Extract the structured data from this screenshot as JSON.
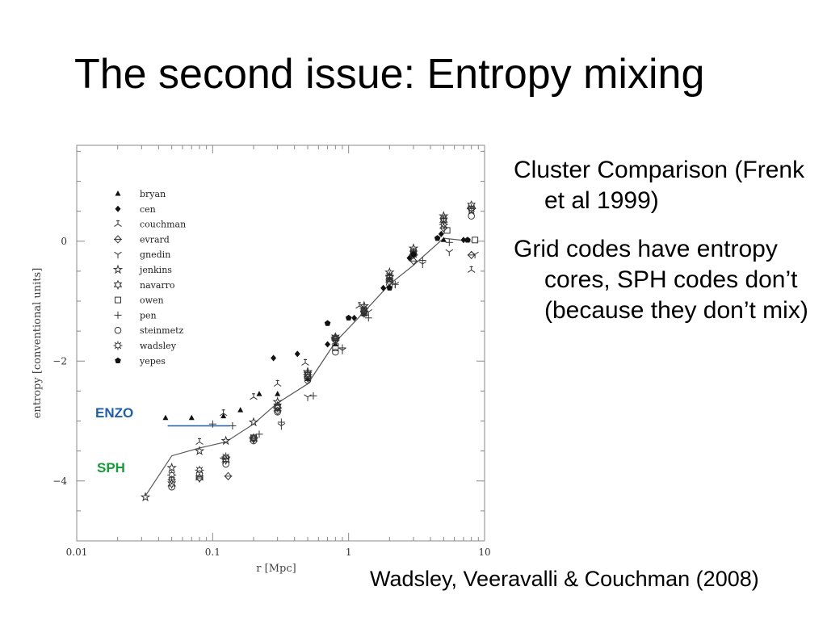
{
  "slide": {
    "title": "The second issue: Entropy mixing",
    "bullets": [
      "Cluster Comparison (Frenk et al 1999)",
      "Grid codes have entropy cores, SPH codes don’t (because they don’t mix)"
    ],
    "citation": "Wadsley, Veeravalli & Couchman (2008)"
  },
  "callouts": {
    "enzo": {
      "text": "ENZO",
      "color": "#1f5fa8"
    },
    "sph": {
      "text": "SPH",
      "color": "#1a9a3a"
    }
  },
  "chart_data": {
    "type": "scatter",
    "xlabel": "r [Mpc]",
    "ylabel": "entropy [conventional units]",
    "xscale": "log",
    "xlim": [
      0.01,
      10
    ],
    "ylim": [
      -5,
      1.6
    ],
    "xticks": [
      "0.01",
      "0.1",
      "1",
      "10"
    ],
    "yticks": [
      "0",
      "−2",
      "−4"
    ],
    "ytick_values": [
      0,
      -2,
      -4
    ],
    "xtick_values": [
      0.01,
      0.1,
      1,
      10
    ],
    "legend": {
      "placement": "top-left"
    },
    "series": [
      {
        "name": "bryan",
        "marker": "triangle",
        "points": [
          [
            0.045,
            -2.95
          ],
          [
            0.07,
            -2.95
          ],
          [
            0.12,
            -2.92
          ],
          [
            0.16,
            -2.82
          ],
          [
            0.22,
            -2.55
          ],
          [
            0.3,
            -2.55
          ],
          [
            0.5,
            -2.3
          ],
          [
            0.8,
            -1.72
          ],
          [
            1.3,
            -1.22
          ],
          [
            2.0,
            -0.62
          ],
          [
            3.0,
            -0.22
          ],
          [
            5.0,
            0.02
          ]
        ]
      },
      {
        "name": "cen",
        "marker": "diamond",
        "points": [
          [
            0.28,
            -1.95
          ],
          [
            0.42,
            -1.88
          ],
          [
            0.7,
            -1.72
          ],
          [
            1.1,
            -1.28
          ],
          [
            1.8,
            -0.78
          ],
          [
            2.8,
            -0.28
          ],
          [
            4.8,
            0.12
          ],
          [
            7.0,
            0.02
          ]
        ]
      },
      {
        "name": "couchman",
        "marker": "tri3",
        "points": [
          [
            0.08,
            -3.35
          ],
          [
            0.12,
            -2.87
          ],
          [
            0.2,
            -2.6
          ],
          [
            0.3,
            -2.38
          ],
          [
            0.48,
            -2.03
          ],
          [
            0.8,
            -1.68
          ],
          [
            1.2,
            -1.08
          ],
          [
            2.0,
            -0.62
          ],
          [
            3.0,
            -0.18
          ],
          [
            5.0,
            0.32
          ],
          [
            8.0,
            -0.48
          ]
        ]
      },
      {
        "name": "evrard",
        "marker": "diamond-open",
        "points": [
          [
            0.05,
            -3.98
          ],
          [
            0.08,
            -3.95
          ],
          [
            0.13,
            -3.92
          ],
          [
            0.2,
            -3.3
          ],
          [
            0.3,
            -2.83
          ],
          [
            0.5,
            -2.28
          ],
          [
            0.8,
            -1.65
          ],
          [
            1.3,
            -1.18
          ],
          [
            2.0,
            -0.68
          ],
          [
            3.0,
            -0.33
          ],
          [
            5.0,
            0.22
          ],
          [
            8.0,
            -0.23
          ]
        ]
      },
      {
        "name": "gnedin",
        "marker": "tri-down",
        "points": [
          [
            0.12,
            -3.65
          ],
          [
            0.32,
            -3.08
          ],
          [
            0.5,
            -2.6
          ],
          [
            0.9,
            -1.82
          ],
          [
            1.4,
            -1.18
          ],
          [
            2.2,
            -0.72
          ],
          [
            3.5,
            -0.38
          ],
          [
            5.5,
            -0.18
          ],
          [
            8.5,
            -0.22
          ]
        ]
      },
      {
        "name": "jenkins",
        "marker": "star-open",
        "points": [
          [
            0.032,
            -4.27
          ],
          [
            0.05,
            -3.78
          ],
          [
            0.08,
            -3.5
          ],
          [
            0.125,
            -3.33
          ],
          [
            0.2,
            -3.02
          ],
          [
            0.3,
            -2.68
          ],
          [
            0.5,
            -2.18
          ],
          [
            0.8,
            -1.62
          ],
          [
            1.3,
            -1.08
          ],
          [
            2.0,
            -0.52
          ],
          [
            3.0,
            -0.12
          ],
          [
            5.0,
            0.42
          ],
          [
            8.0,
            0.52
          ]
        ]
      },
      {
        "name": "navarro",
        "marker": "star6-open",
        "points": [
          [
            0.05,
            -4.05
          ],
          [
            0.08,
            -3.95
          ],
          [
            0.125,
            -3.65
          ],
          [
            0.2,
            -3.3
          ],
          [
            0.3,
            -2.75
          ],
          [
            0.5,
            -2.22
          ],
          [
            0.8,
            -1.6
          ],
          [
            1.3,
            -1.2
          ],
          [
            2.0,
            -0.6
          ],
          [
            3.0,
            -0.2
          ],
          [
            5.0,
            0.35
          ],
          [
            8.0,
            0.6
          ]
        ]
      },
      {
        "name": "owen",
        "marker": "square-open",
        "points": [
          [
            0.125,
            -3.63
          ],
          [
            0.2,
            -3.28
          ],
          [
            0.3,
            -2.78
          ],
          [
            0.5,
            -2.24
          ],
          [
            0.8,
            -1.78
          ],
          [
            1.3,
            -1.17
          ],
          [
            2.0,
            -0.62
          ],
          [
            3.0,
            -0.18
          ],
          [
            5.3,
            0.18
          ],
          [
            8.5,
            0.02
          ]
        ]
      },
      {
        "name": "pen",
        "marker": "plus",
        "points": [
          [
            0.1,
            -3.05
          ],
          [
            0.14,
            -3.08
          ],
          [
            0.22,
            -3.22
          ],
          [
            0.32,
            -3.02
          ],
          [
            0.55,
            -2.58
          ],
          [
            0.9,
            -1.78
          ],
          [
            1.4,
            -1.28
          ],
          [
            2.2,
            -0.72
          ],
          [
            3.5,
            -0.32
          ],
          [
            5.5,
            -0.02
          ]
        ]
      },
      {
        "name": "steinmetz",
        "marker": "circle-open",
        "points": [
          [
            0.05,
            -4.1
          ],
          [
            0.08,
            -3.88
          ],
          [
            0.125,
            -3.72
          ],
          [
            0.2,
            -3.33
          ],
          [
            0.3,
            -2.85
          ],
          [
            0.5,
            -2.32
          ],
          [
            0.8,
            -1.85
          ],
          [
            1.3,
            -1.15
          ],
          [
            2.0,
            -0.72
          ],
          [
            3.0,
            -0.22
          ],
          [
            5.0,
            0.38
          ],
          [
            8.0,
            0.42
          ]
        ]
      },
      {
        "name": "wadsley",
        "marker": "star-burst",
        "points": [
          [
            0.05,
            -3.9
          ],
          [
            0.08,
            -3.82
          ],
          [
            0.125,
            -3.6
          ],
          [
            0.2,
            -3.28
          ],
          [
            0.3,
            -2.78
          ],
          [
            0.5,
            -2.22
          ],
          [
            0.8,
            -1.62
          ],
          [
            1.3,
            -1.12
          ],
          [
            2.0,
            -0.58
          ],
          [
            3.0,
            -0.22
          ],
          [
            5.0,
            0.28
          ],
          [
            8.0,
            0.55
          ]
        ]
      },
      {
        "name": "yepes",
        "marker": "pentagon",
        "points": [
          [
            0.7,
            -1.37
          ],
          [
            1.0,
            -1.28
          ],
          [
            2.0,
            -0.78
          ],
          [
            3.0,
            -0.22
          ],
          [
            4.5,
            0.05
          ],
          [
            7.5,
            0.02
          ]
        ]
      }
    ],
    "mean_curve": {
      "x": [
        0.032,
        0.05,
        0.08,
        0.125,
        0.2,
        0.3,
        0.5,
        0.8,
        1.3,
        2.0,
        3.0,
        5.0,
        8.0
      ],
      "y": [
        -4.25,
        -3.58,
        -3.45,
        -3.35,
        -3.05,
        -2.7,
        -2.38,
        -1.68,
        -1.18,
        -0.72,
        -0.4,
        0.05,
        0.0
      ]
    },
    "enzo_line": {
      "x": [
        0.055,
        0.12
      ],
      "y": [
        -3.0,
        -3.0
      ]
    }
  }
}
